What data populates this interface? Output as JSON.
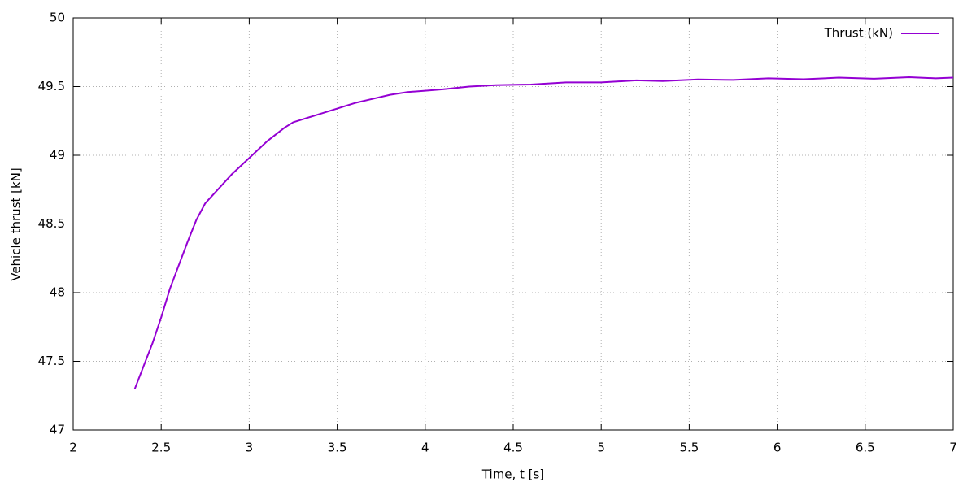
{
  "chart_data": {
    "type": "line",
    "x_label": "Time, t [s]",
    "y_label": "Vehicle thrust [kN]",
    "x": [
      2.35,
      2.45,
      2.5,
      2.55,
      2.6,
      2.65,
      2.7,
      2.75,
      2.8,
      2.9,
      3.0,
      3.1,
      3.2,
      3.25,
      3.3,
      3.4,
      3.5,
      3.6,
      3.7,
      3.8,
      3.9,
      4.0,
      4.1,
      4.25,
      4.4,
      4.6,
      4.8,
      5.0,
      5.2,
      5.35,
      5.55,
      5.75,
      5.95,
      6.15,
      6.35,
      6.55,
      6.75,
      6.9,
      7.0
    ],
    "series": [
      {
        "name": "Thrust (kN)",
        "color": "#9400d3",
        "values": [
          47.3,
          47.63,
          47.82,
          48.03,
          48.2,
          48.37,
          48.53,
          48.65,
          48.72,
          48.86,
          48.98,
          49.1,
          49.2,
          49.24,
          49.26,
          49.3,
          49.34,
          49.38,
          49.41,
          49.44,
          49.46,
          49.47,
          49.48,
          49.5,
          49.51,
          49.515,
          49.53,
          49.53,
          49.545,
          49.54,
          49.552,
          49.548,
          49.56,
          49.553,
          49.565,
          49.557,
          49.568,
          49.56,
          49.565
        ]
      }
    ],
    "xlim": [
      2,
      7
    ],
    "xticks": [
      2,
      2.5,
      3,
      3.5,
      4,
      4.5,
      5,
      5.5,
      6,
      6.5,
      7
    ],
    "ylim": [
      47,
      50
    ],
    "yticks": [
      47,
      47.5,
      48,
      48.5,
      49,
      49.5,
      50
    ],
    "grid": true,
    "legend": "top-right"
  }
}
